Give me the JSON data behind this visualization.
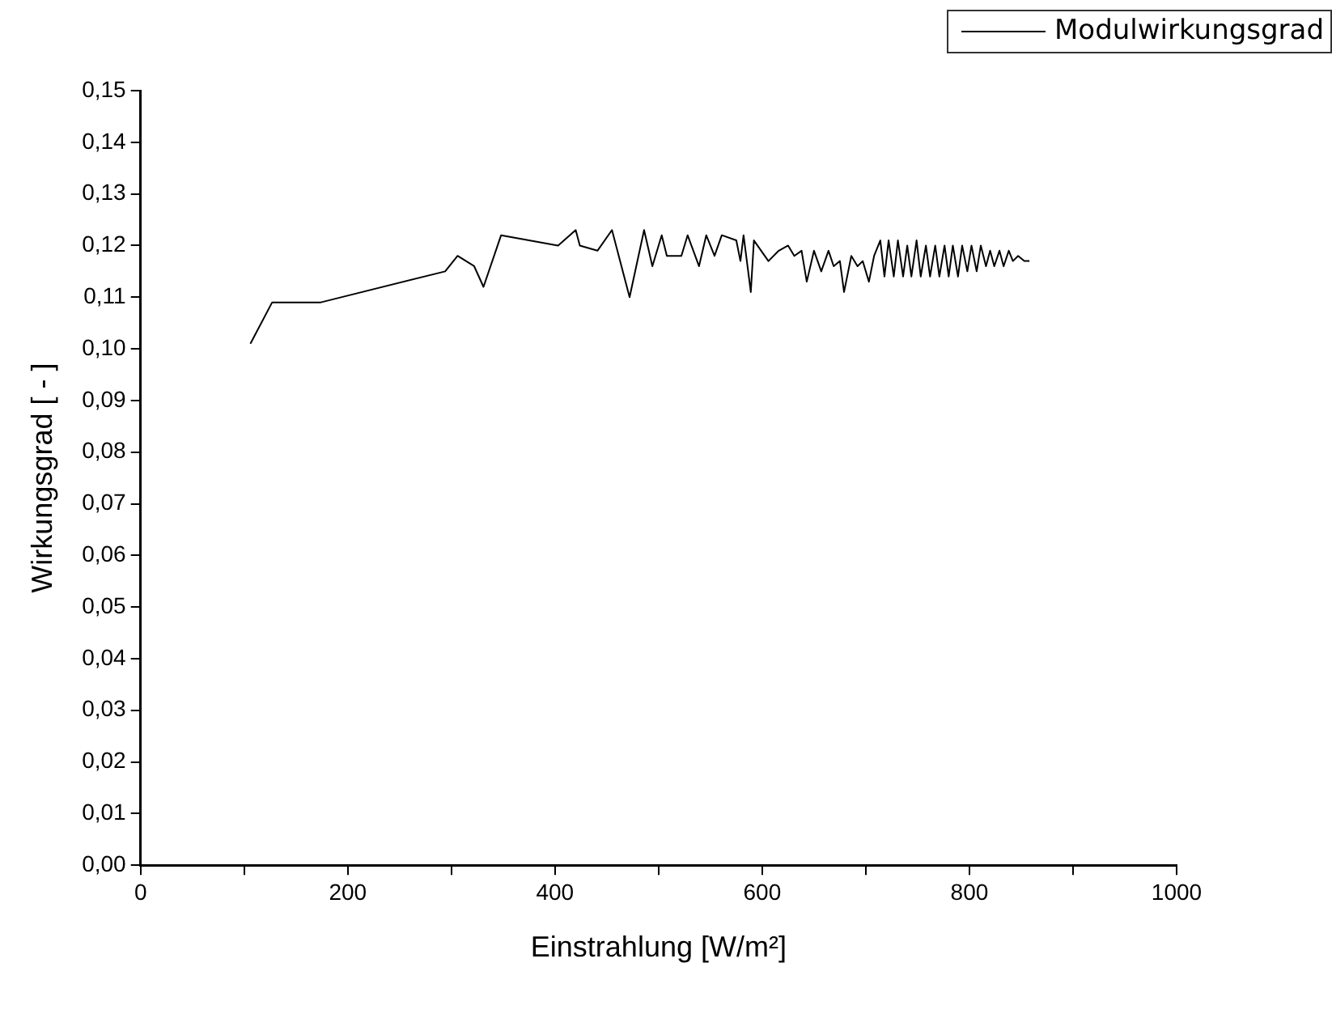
{
  "chart_data": {
    "type": "line",
    "xlabel": "Einstrahlung [W/m²]",
    "ylabel": "Wirkungsgrad [ - ]",
    "x": [
      106,
      127,
      174,
      294,
      306,
      322,
      331,
      348,
      403,
      420,
      424,
      441,
      455,
      472,
      486,
      494,
      503,
      508,
      522,
      528,
      539,
      546,
      554,
      561,
      575,
      579,
      582,
      589,
      592,
      606,
      616,
      625,
      631,
      638,
      643,
      650,
      657,
      664,
      669,
      675,
      679,
      686,
      692,
      697,
      703,
      708,
      714,
      718,
      722,
      727,
      731,
      736,
      740,
      744,
      749,
      753,
      758,
      762,
      767,
      771,
      776,
      780,
      784,
      789,
      793,
      798,
      802,
      807,
      811,
      816,
      820,
      824,
      829,
      833,
      838,
      842,
      847,
      853,
      858
    ],
    "series": [
      {
        "name": "Modulwirkungsgrad",
        "color": "#000000",
        "values": [
          0.101,
          0.109,
          0.109,
          0.115,
          0.118,
          0.116,
          0.112,
          0.122,
          0.12,
          0.123,
          0.12,
          0.119,
          0.123,
          0.11,
          0.123,
          0.116,
          0.122,
          0.118,
          0.118,
          0.122,
          0.116,
          0.122,
          0.118,
          0.122,
          0.121,
          0.117,
          0.122,
          0.111,
          0.121,
          0.117,
          0.119,
          0.12,
          0.118,
          0.119,
          0.113,
          0.119,
          0.115,
          0.119,
          0.116,
          0.117,
          0.111,
          0.118,
          0.116,
          0.117,
          0.113,
          0.118,
          0.121,
          0.114,
          0.121,
          0.114,
          0.121,
          0.114,
          0.12,
          0.114,
          0.121,
          0.114,
          0.12,
          0.114,
          0.12,
          0.114,
          0.12,
          0.114,
          0.12,
          0.114,
          0.12,
          0.115,
          0.12,
          0.115,
          0.12,
          0.116,
          0.119,
          0.116,
          0.119,
          0.116,
          0.119,
          0.117,
          0.118,
          0.117,
          0.117
        ]
      }
    ],
    "xlim": [
      0,
      1000
    ],
    "xticks": [
      0,
      {
        "value": 100,
        "label": null
      },
      200,
      {
        "value": 300,
        "label": null
      },
      400,
      {
        "value": 500,
        "label": null
      },
      600,
      {
        "value": 700,
        "label": null
      },
      800,
      {
        "value": 900,
        "label": null
      },
      1000
    ],
    "ylim": [
      0,
      0.15
    ],
    "yticks": [
      {
        "value": 0,
        "label": "0,00"
      },
      {
        "value": 0.01,
        "label": "0,01"
      },
      {
        "value": 0.02,
        "label": "0,02"
      },
      {
        "value": 0.03,
        "label": "0,03"
      },
      {
        "value": 0.04,
        "label": "0,04"
      },
      {
        "value": 0.05,
        "label": "0,05"
      },
      {
        "value": 0.06,
        "label": "0,06"
      },
      {
        "value": 0.07,
        "label": "0,07"
      },
      {
        "value": 0.08,
        "label": "0,08"
      },
      {
        "value": 0.09,
        "label": "0,09"
      },
      {
        "value": 0.1,
        "label": "0,10"
      },
      {
        "value": 0.11,
        "label": "0,11"
      },
      {
        "value": 0.12,
        "label": "0,12"
      },
      {
        "value": 0.13,
        "label": "0,13"
      },
      {
        "value": 0.14,
        "label": "0,14"
      },
      {
        "value": 0.15,
        "label": "0,15"
      }
    ],
    "grid": false,
    "legend": "top right",
    "marker": "none",
    "line_style": "solid"
  }
}
